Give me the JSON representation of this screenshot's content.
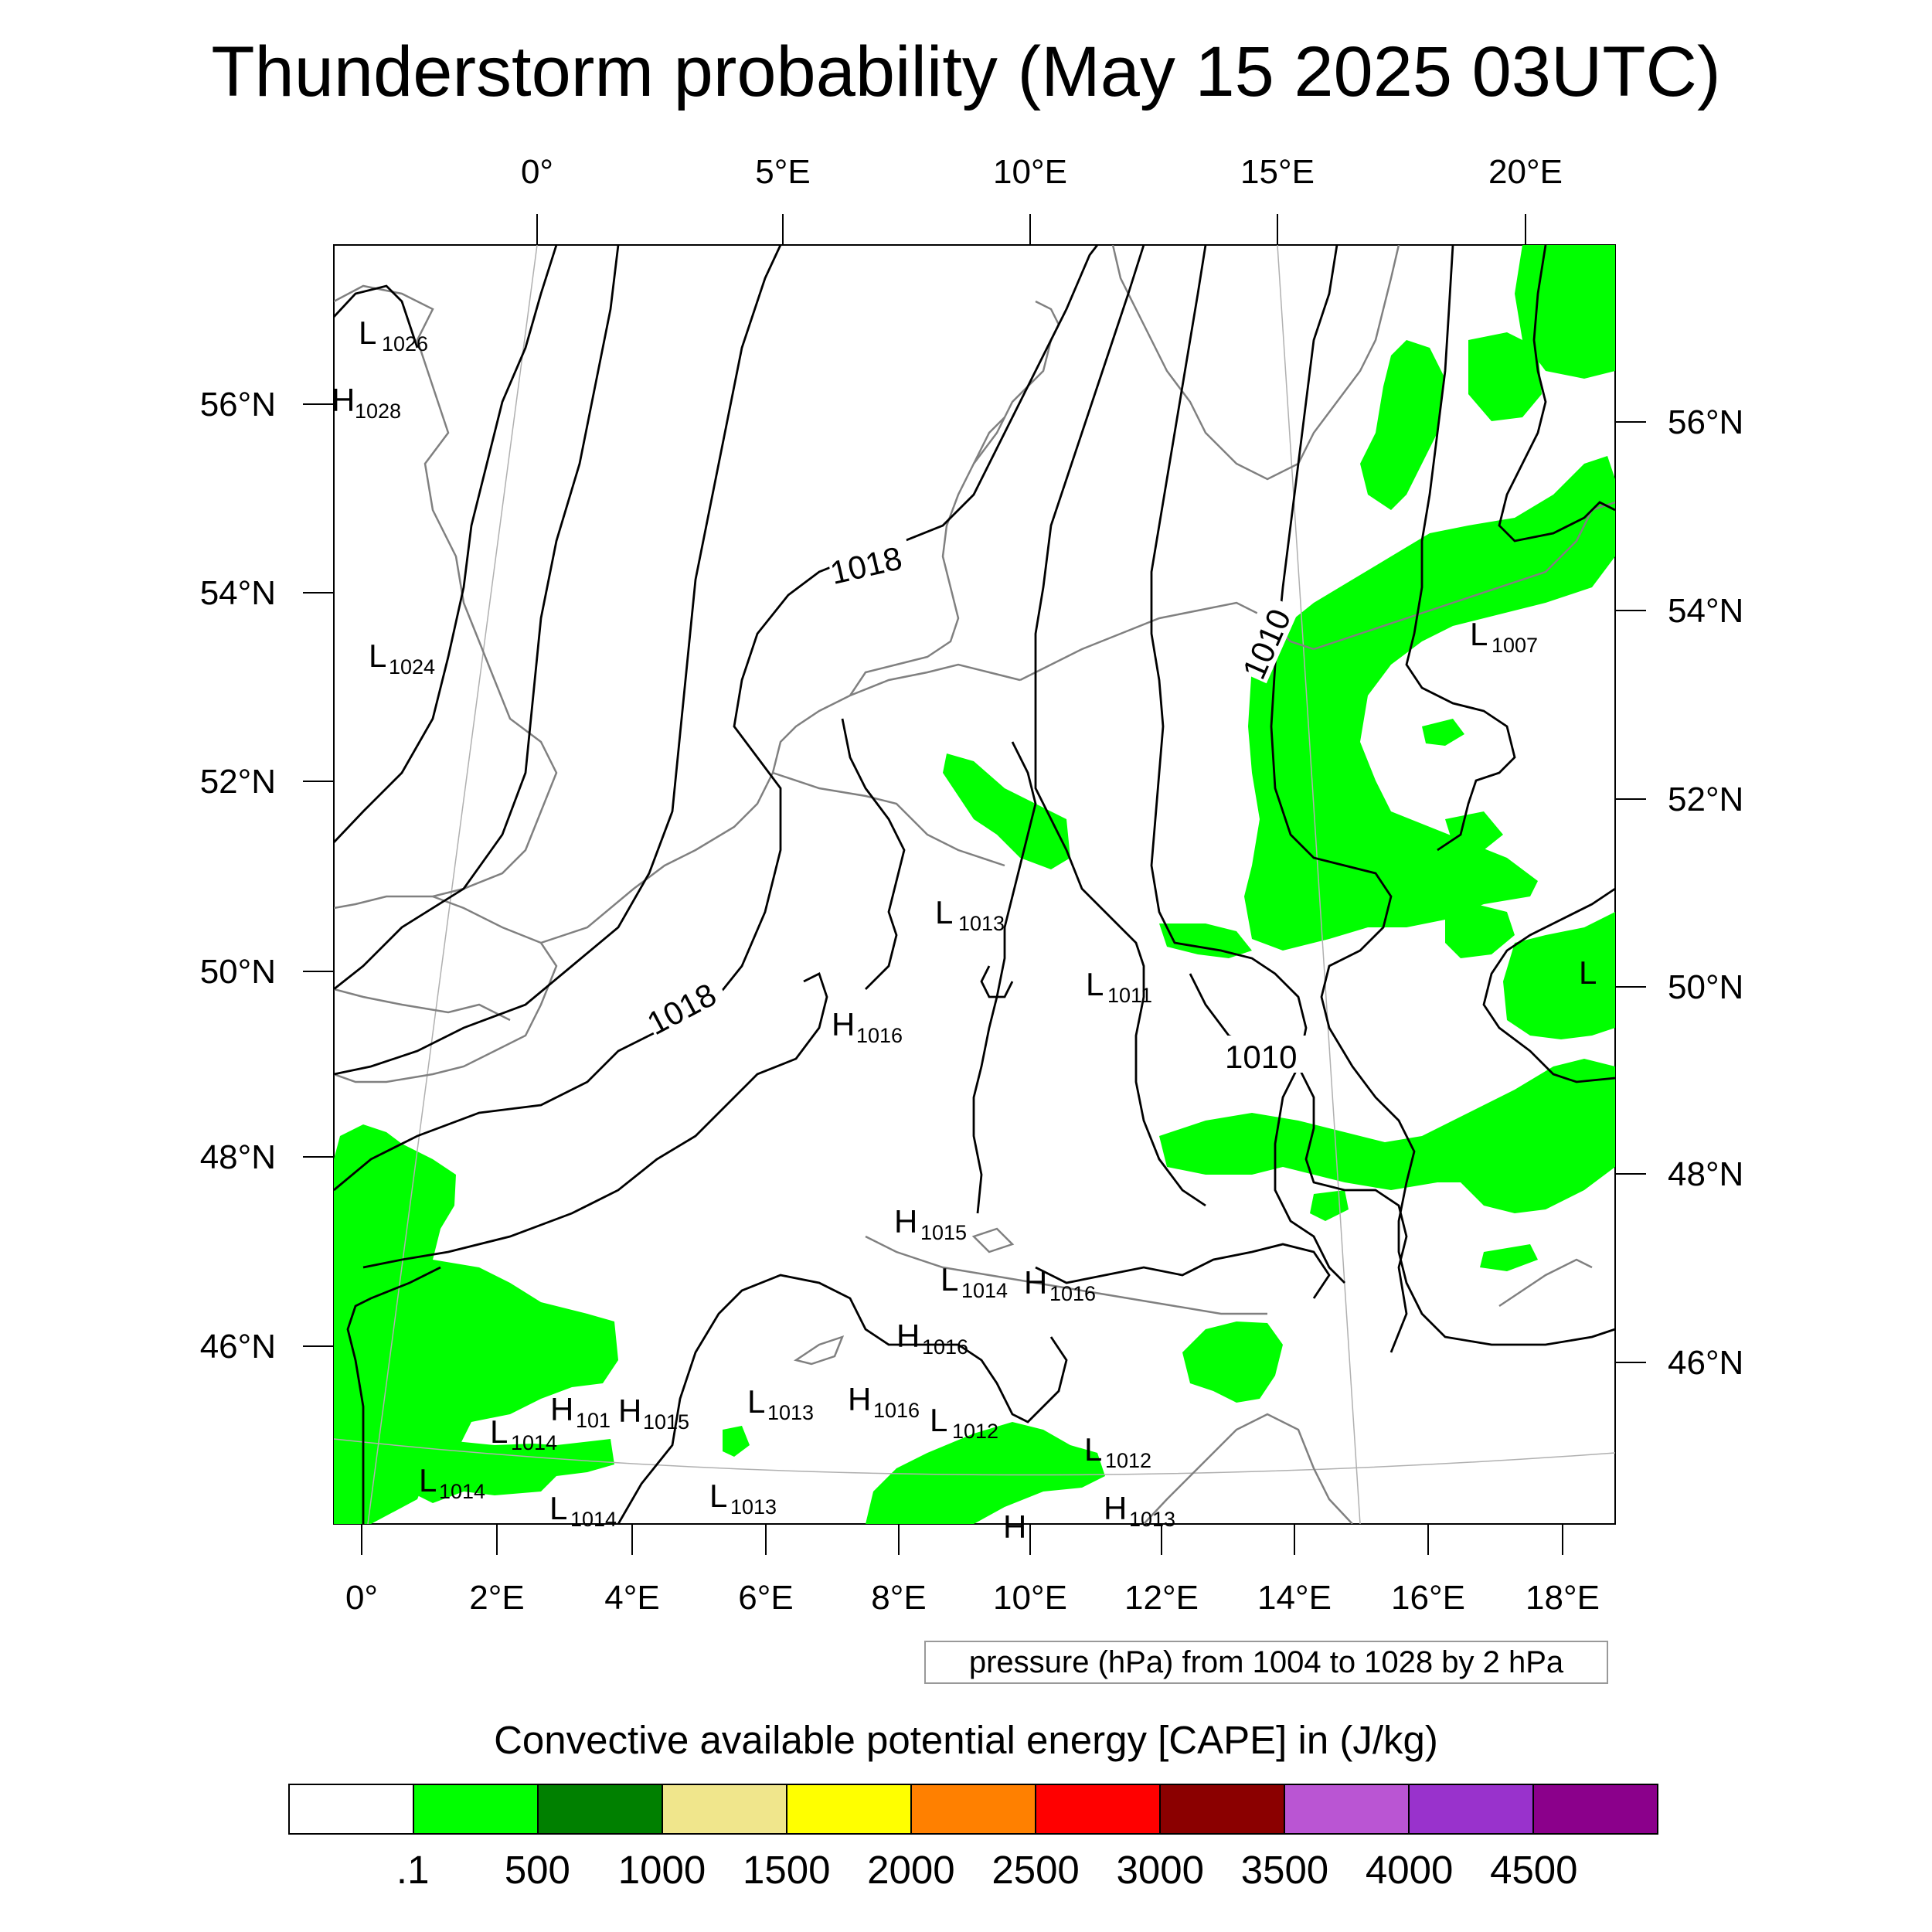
{
  "title": "Thunderstorm probability (May 15 2025 03UTC)",
  "axes": {
    "top_labels": [
      "0°",
      "5°E",
      "10°E",
      "15°E",
      "20°E"
    ],
    "bottom_labels": [
      "0°",
      "2°E",
      "4°E",
      "6°E",
      "8°E",
      "10°E",
      "12°E",
      "14°E",
      "16°E",
      "18°E"
    ],
    "left_labels": [
      "56°N",
      "54°N",
      "52°N",
      "50°N",
      "48°N",
      "46°N"
    ],
    "right_labels": [
      "56°N",
      "54°N",
      "52°N",
      "50°N",
      "48°N",
      "46°N"
    ]
  },
  "pressure_centers": [
    {
      "type": "L",
      "value": "1026"
    },
    {
      "type": "H",
      "value": "1028"
    },
    {
      "type": "L",
      "value": "1024"
    },
    {
      "type": "L",
      "value": "1007"
    },
    {
      "type": "L",
      "value": "1013"
    },
    {
      "type": "L",
      "value": "1011"
    },
    {
      "type": "H",
      "value": "1016"
    },
    {
      "type": "L",
      "value": ""
    },
    {
      "type": "H",
      "value": "1015"
    },
    {
      "type": "L",
      "value": "1014"
    },
    {
      "type": "H",
      "value": "1016"
    },
    {
      "type": "H",
      "value": "1016"
    },
    {
      "type": "H",
      "value": "101"
    },
    {
      "type": "H",
      "value": "1015"
    },
    {
      "type": "L",
      "value": "1013"
    },
    {
      "type": "H",
      "value": "1016"
    },
    {
      "type": "L",
      "value": "1012"
    },
    {
      "type": "L",
      "value": "1014"
    },
    {
      "type": "L",
      "value": "1012"
    },
    {
      "type": "L",
      "value": "1014"
    },
    {
      "type": "L",
      "value": "1014"
    },
    {
      "type": "L",
      "value": "1013"
    },
    {
      "type": "H",
      "value": ""
    },
    {
      "type": "H",
      "value": "1013"
    }
  ],
  "isobar_labels": [
    "1018",
    "1018",
    "1010",
    "1010"
  ],
  "contour_note": "pressure (hPa) from 1004 to 1028 by 2 hPa",
  "colorbar": {
    "title": "Convective available potential energy [CAPE] in (J/kg)",
    "colors": [
      "#ffffff",
      "#00ff00",
      "#008000",
      "#f0e68c",
      "#ffff00",
      "#ff8000",
      "#ff0000",
      "#8b0000",
      "#ba55d3",
      "#9932cc",
      "#8b008b"
    ],
    "labels": [
      ".1",
      "500",
      "1000",
      "1500",
      "2000",
      "2500",
      "3000",
      "3500",
      "4000",
      "4500"
    ]
  }
}
